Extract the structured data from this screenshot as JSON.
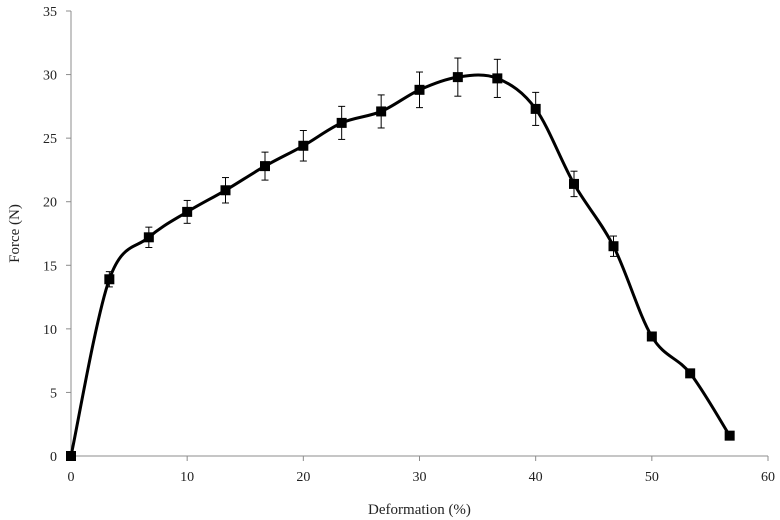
{
  "chart_data": {
    "type": "line",
    "title": "",
    "xlabel": "Deformation (%)",
    "ylabel": "Force (N)",
    "xlim": [
      0,
      60
    ],
    "ylim": [
      0,
      35
    ],
    "x_ticks": [
      0,
      10,
      20,
      30,
      40,
      50,
      60
    ],
    "y_ticks": [
      0,
      5,
      10,
      15,
      20,
      25,
      30,
      35
    ],
    "x_tick_labels": [
      "0",
      "10",
      "20",
      "30",
      "40",
      "50",
      "60"
    ],
    "y_tick_labels": [
      "0",
      "5",
      "10",
      "15",
      "20",
      "25",
      "30",
      "35"
    ],
    "grid": false,
    "legend": "none",
    "series": [
      {
        "marker": "square",
        "line": "smooth",
        "color": "#000000",
        "points": [
          {
            "x": 0,
            "y": 0.0,
            "err": 0.0
          },
          {
            "x": 3.3,
            "y": 13.9,
            "err": 0.6
          },
          {
            "x": 6.7,
            "y": 17.2,
            "err": 0.8
          },
          {
            "x": 10.0,
            "y": 19.2,
            "err": 0.9
          },
          {
            "x": 13.3,
            "y": 20.9,
            "err": 1.0
          },
          {
            "x": 16.7,
            "y": 22.8,
            "err": 1.1
          },
          {
            "x": 20.0,
            "y": 24.4,
            "err": 1.2
          },
          {
            "x": 23.3,
            "y": 26.2,
            "err": 1.3
          },
          {
            "x": 26.7,
            "y": 27.1,
            "err": 1.3
          },
          {
            "x": 30.0,
            "y": 28.8,
            "err": 1.4
          },
          {
            "x": 33.3,
            "y": 29.8,
            "err": 1.5
          },
          {
            "x": 36.7,
            "y": 29.7,
            "err": 1.5
          },
          {
            "x": 40.0,
            "y": 27.3,
            "err": 1.3
          },
          {
            "x": 43.3,
            "y": 21.4,
            "err": 1.0
          },
          {
            "x": 46.7,
            "y": 16.5,
            "err": 0.8
          },
          {
            "x": 50.0,
            "y": 9.4,
            "err": 0.3
          },
          {
            "x": 53.3,
            "y": 6.5,
            "err": 0.0
          },
          {
            "x": 56.7,
            "y": 1.6,
            "err": 0.0
          }
        ]
      }
    ]
  }
}
